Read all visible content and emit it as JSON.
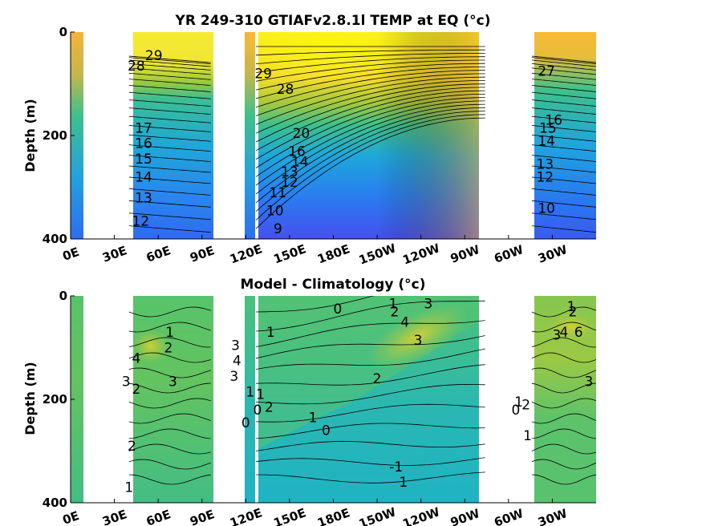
{
  "chart_data": [
    {
      "type": "heatmap",
      "title": "YR 249-310 GTIAFv2.8.1l TEMP at EQ (°c)",
      "ylabel": "Depth (m)",
      "yticks": [
        "0",
        "200",
        "400"
      ],
      "ylim": [
        400,
        0
      ],
      "xlim": [
        0,
        360
      ],
      "xticks": [
        "0E",
        "30E",
        "60E",
        "90E",
        "120E",
        "150E",
        "180E",
        "150W",
        "120W",
        "90W",
        "60W",
        "30W"
      ],
      "colormap": "parula",
      "land_gaps_lon": [
        [
          5,
          40
        ],
        [
          96,
          116
        ],
        [
          125,
          127
        ],
        [
          284,
          316
        ]
      ],
      "contour_labels": [
        {
          "text": "29",
          "lon": 57,
          "depth": 45
        },
        {
          "text": "28",
          "lon": 45,
          "depth": 65
        },
        {
          "text": "17",
          "lon": 50,
          "depth": 185
        },
        {
          "text": "16",
          "lon": 50,
          "depth": 215
        },
        {
          "text": "15",
          "lon": 50,
          "depth": 245
        },
        {
          "text": "14",
          "lon": 50,
          "depth": 280
        },
        {
          "text": "13",
          "lon": 50,
          "depth": 320
        },
        {
          "text": "12",
          "lon": 48,
          "depth": 365
        },
        {
          "text": "29",
          "lon": 132,
          "depth": 80
        },
        {
          "text": "28",
          "lon": 147,
          "depth": 110
        },
        {
          "text": "20",
          "lon": 158,
          "depth": 195
        },
        {
          "text": "16",
          "lon": 155,
          "depth": 230
        },
        {
          "text": "14",
          "lon": 157,
          "depth": 250
        },
        {
          "text": "13",
          "lon": 150,
          "depth": 270
        },
        {
          "text": "12",
          "lon": 150,
          "depth": 290
        },
        {
          "text": "11",
          "lon": 142,
          "depth": 310
        },
        {
          "text": "10",
          "lon": 140,
          "depth": 345
        },
        {
          "text": "9",
          "lon": 142,
          "depth": 380
        },
        {
          "text": "27",
          "lon": 326,
          "depth": 75
        },
        {
          "text": "16",
          "lon": 331,
          "depth": 170
        },
        {
          "text": "15",
          "lon": 327,
          "depth": 185
        },
        {
          "text": "14",
          "lon": 326,
          "depth": 210
        },
        {
          "text": "13",
          "lon": 325,
          "depth": 255
        },
        {
          "text": "12",
          "lon": 325,
          "depth": 280
        },
        {
          "text": "10",
          "lon": 326,
          "depth": 340
        }
      ]
    },
    {
      "type": "heatmap",
      "title": "Model - Climatology (°c)",
      "ylabel": "Depth (m)",
      "yticks": [
        "0",
        "200",
        "400"
      ],
      "ylim": [
        400,
        0
      ],
      "xlim": [
        0,
        360
      ],
      "xticks": [
        "0E",
        "30E",
        "60E",
        "90E",
        "120E",
        "150E",
        "180E",
        "150W",
        "120W",
        "90W",
        "60W",
        "30W"
      ],
      "colormap": "parula",
      "land_gaps_lon": [
        [
          5,
          40
        ],
        [
          96,
          116
        ],
        [
          125,
          127
        ],
        [
          284,
          316
        ]
      ],
      "contour_labels": [
        {
          "text": "1",
          "lon": 68,
          "depth": 70
        },
        {
          "text": "2",
          "lon": 67,
          "depth": 100
        },
        {
          "text": "4",
          "lon": 45,
          "depth": 120
        },
        {
          "text": "3",
          "lon": 38,
          "depth": 165
        },
        {
          "text": "2",
          "lon": 45,
          "depth": 180
        },
        {
          "text": "3",
          "lon": 70,
          "depth": 165
        },
        {
          "text": "2",
          "lon": 42,
          "depth": 290
        },
        {
          "text": "1",
          "lon": 40,
          "depth": 370
        },
        {
          "text": "3",
          "lon": 113,
          "depth": 95
        },
        {
          "text": "3",
          "lon": 112,
          "depth": 155
        },
        {
          "text": "4",
          "lon": 114,
          "depth": 125
        },
        {
          "text": "1",
          "lon": 123,
          "depth": 185
        },
        {
          "text": "0",
          "lon": 120,
          "depth": 245
        },
        {
          "text": "0",
          "lon": 128,
          "depth": 220
        },
        {
          "text": "1",
          "lon": 130,
          "depth": 190
        },
        {
          "text": "2",
          "lon": 136,
          "depth": 215
        },
        {
          "text": "1",
          "lon": 137,
          "depth": 70
        },
        {
          "text": "0",
          "lon": 183,
          "depth": 25
        },
        {
          "text": "1",
          "lon": 166,
          "depth": 235
        },
        {
          "text": "0",
          "lon": 175,
          "depth": 260
        },
        {
          "text": "2",
          "lon": 210,
          "depth": 160
        },
        {
          "text": "1",
          "lon": 221,
          "depth": 15
        },
        {
          "text": "2",
          "lon": 222,
          "depth": 30
        },
        {
          "text": "4",
          "lon": 229,
          "depth": 50
        },
        {
          "text": "3",
          "lon": 245,
          "depth": 15
        },
        {
          "text": "3",
          "lon": 238,
          "depth": 85
        },
        {
          "text": "-1",
          "lon": 223,
          "depth": 330
        },
        {
          "text": "1",
          "lon": 228,
          "depth": 360
        },
        {
          "text": "1",
          "lon": 307,
          "depth": 205
        },
        {
          "text": "2",
          "lon": 312,
          "depth": 210
        },
        {
          "text": "0",
          "lon": 305,
          "depth": 220
        },
        {
          "text": "1",
          "lon": 313,
          "depth": 270
        },
        {
          "text": "2",
          "lon": 344,
          "depth": 30
        },
        {
          "text": "1",
          "lon": 343,
          "depth": 20
        },
        {
          "text": "3",
          "lon": 333,
          "depth": 75
        },
        {
          "text": "6",
          "lon": 348,
          "depth": 70
        },
        {
          "text": "4",
          "lon": 338,
          "depth": 70
        },
        {
          "text": "3",
          "lon": 355,
          "depth": 165
        }
      ]
    }
  ]
}
